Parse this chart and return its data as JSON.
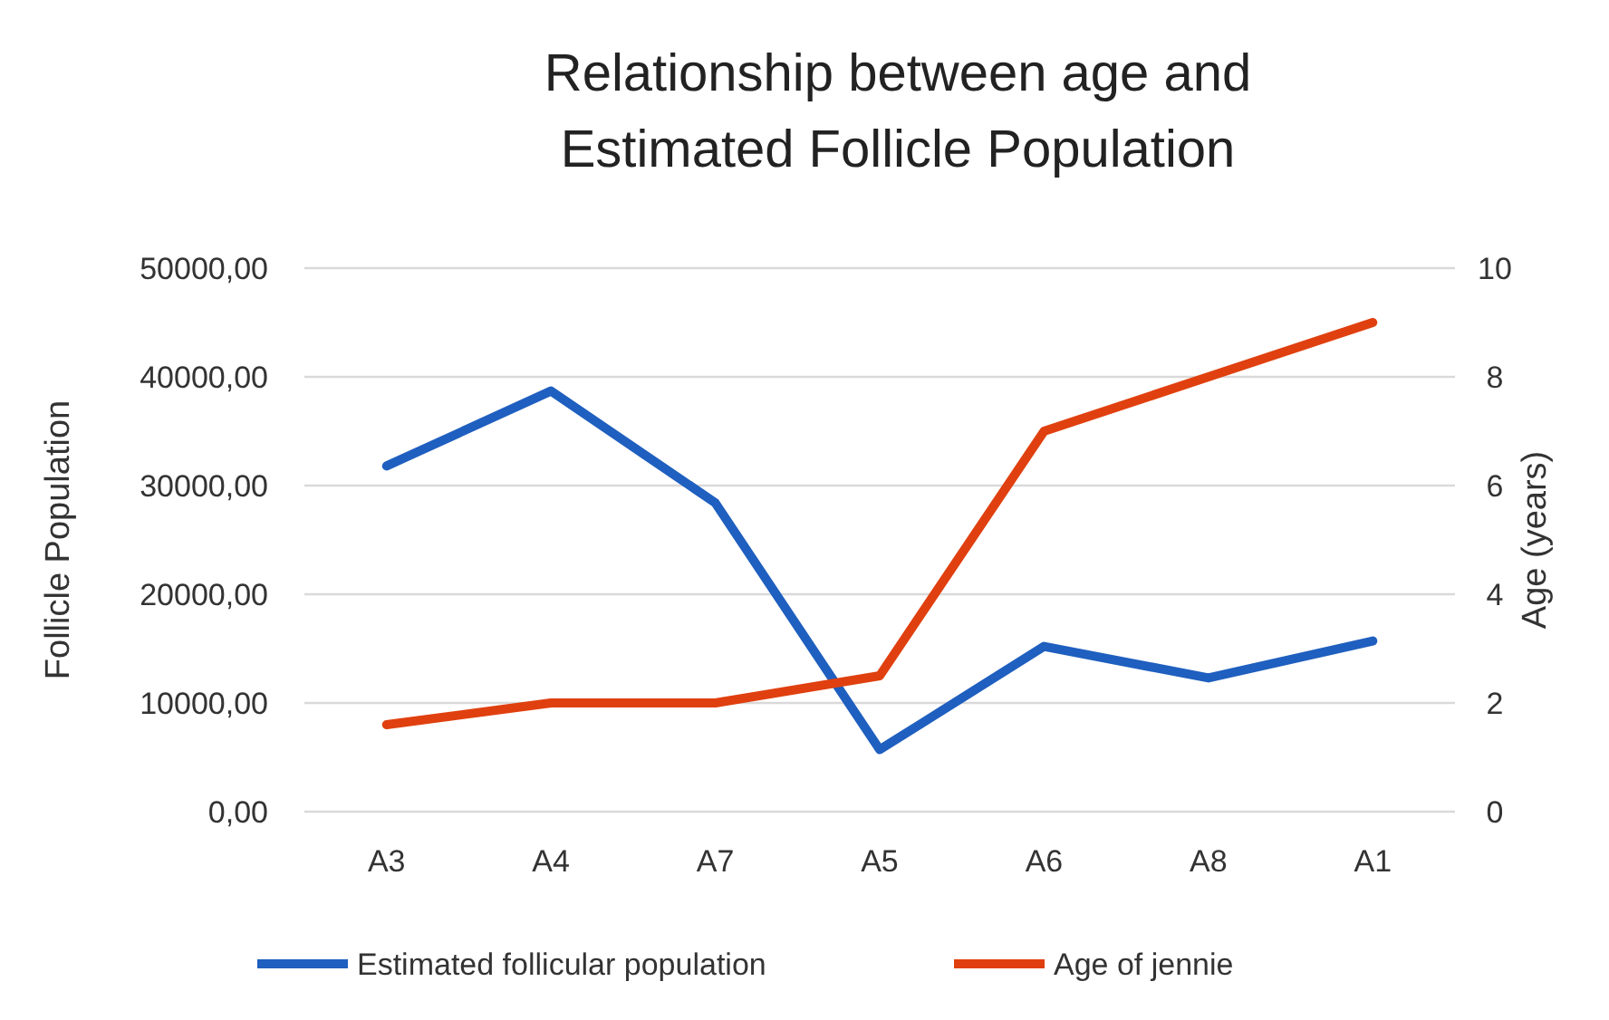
{
  "chart_data": {
    "type": "line",
    "title": "Relationship between age and Estimated Follicle Population",
    "ylabel": "Follicle Population",
    "y2label": "Age (years)",
    "categories": [
      "A3",
      "A4",
      "A7",
      "A5",
      "A6",
      "A8",
      "A1"
    ],
    "series": [
      {
        "name": "Estimated follicular population",
        "color": "#1f5fbf",
        "values": [
          31800,
          38700,
          28400,
          5700,
          15200,
          12300,
          15700
        ]
      },
      {
        "name": "Age of jennie",
        "color": "#e0400f",
        "axis": "y2",
        "values": [
          1.6,
          2,
          2,
          2.5,
          7,
          8,
          9
        ]
      }
    ],
    "ylim": [
      0,
      50000
    ],
    "yticks": [
      {
        "value": 0,
        "label": "0,00"
      },
      {
        "value": 10000,
        "label": "10000,00"
      },
      {
        "value": 20000,
        "label": "20000,00"
      },
      {
        "value": 30000,
        "label": "30000,00"
      },
      {
        "value": 40000,
        "label": "40000,00"
      },
      {
        "value": 50000,
        "label": "50000,00"
      }
    ],
    "y2lim": [
      0,
      10
    ],
    "y2ticks": [
      0,
      2,
      4,
      6,
      8,
      10
    ],
    "grid": "y",
    "legend": "bottom",
    "marker": "none",
    "line_style": "solid"
  }
}
